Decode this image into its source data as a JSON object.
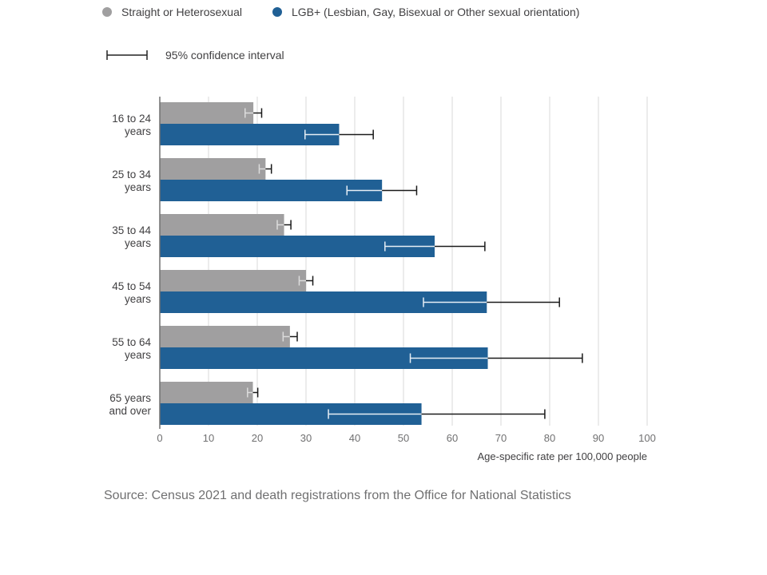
{
  "legend": {
    "series_a": "Straight or Heterosexual",
    "series_b": "LGB+ (Lesbian, Gay, Bisexual or Other sexual orientation)",
    "ci": "95% confidence interval"
  },
  "source": "Source: Census 2021 and death registrations from the Office for National Statistics",
  "colors": {
    "straight": "#a09fa0",
    "lgb": "#206095",
    "grid": "#d9d9d9",
    "axis": "#707071",
    "text": "#414042"
  },
  "chart_data": {
    "type": "bar",
    "orientation": "horizontal",
    "categories": [
      [
        "16 to 24",
        "years"
      ],
      [
        "25 to 34",
        "years"
      ],
      [
        "35 to 44",
        "years"
      ],
      [
        "45 to 54",
        "years"
      ],
      [
        "55 to 64",
        "years"
      ],
      [
        "65 years",
        "and over"
      ]
    ],
    "series": [
      {
        "name": "Straight or Heterosexual",
        "values": [
          19.2,
          21.7,
          25.5,
          30.0,
          26.7,
          19.1
        ],
        "ci_low": [
          17.5,
          20.4,
          24.1,
          28.6,
          25.3,
          18.0
        ],
        "ci_high": [
          20.9,
          22.9,
          26.9,
          31.4,
          28.2,
          20.1
        ]
      },
      {
        "name": "LGB+ (Lesbian, Gay, Bisexual or Other sexual orientation)",
        "values": [
          36.8,
          45.6,
          56.4,
          67.1,
          67.3,
          53.7
        ],
        "ci_low": [
          29.8,
          38.4,
          46.2,
          54.1,
          51.4,
          34.6
        ],
        "ci_high": [
          43.8,
          52.7,
          66.7,
          82.0,
          86.7,
          79.0
        ]
      }
    ],
    "xlim": [
      0,
      100
    ],
    "xticks": [
      0,
      10,
      20,
      30,
      40,
      50,
      60,
      70,
      80,
      90,
      100
    ],
    "xlabel": "Age-specific rate per 100,000 people",
    "grid": true
  }
}
